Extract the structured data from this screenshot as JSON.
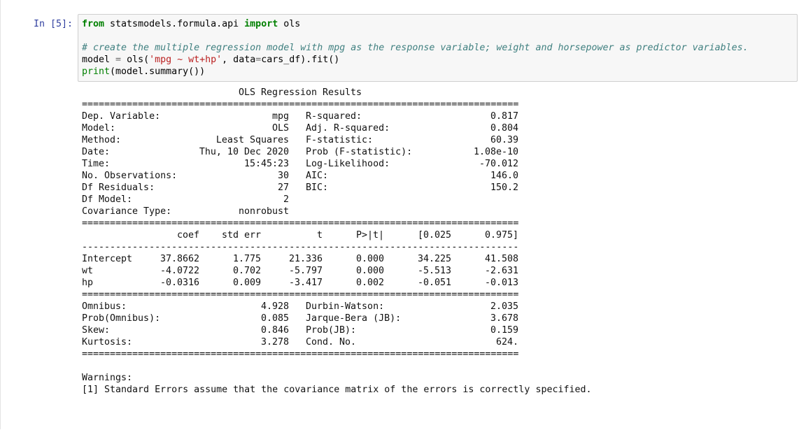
{
  "prompt": "In [5]:",
  "code": {
    "lines": [
      [
        "from",
        " statsmodels.formula.api ",
        "import",
        " ols"
      ],
      [
        "# create the multiple regression model with mpg as the response variable; weight and horsepower as predictor variables."
      ],
      [
        "model",
        " = ",
        "ols(",
        "'mpg ~ wt+hp'",
        ", data",
        "=",
        "cars_df).fit()"
      ],
      [
        "print",
        "(model.summary())"
      ]
    ]
  },
  "output": {
    "title": "OLS Regression Results",
    "rule_double": "==============================================================================",
    "rule_single": "------------------------------------------------------------------------------",
    "model_rows": [
      [
        "Dep. Variable:",
        "mpg",
        "R-squared:",
        "0.817"
      ],
      [
        "Model:",
        "OLS",
        "Adj. R-squared:",
        "0.804"
      ],
      [
        "Method:",
        "Least Squares",
        "F-statistic:",
        "60.39"
      ],
      [
        "Date:",
        "Thu, 10 Dec 2020",
        "Prob (F-statistic):",
        "1.08e-10"
      ],
      [
        "Time:",
        "15:45:23",
        "Log-Likelihood:",
        "-70.012"
      ],
      [
        "No. Observations:",
        "30",
        "AIC:",
        "146.0"
      ],
      [
        "Df Residuals:",
        "27",
        "BIC:",
        "150.2"
      ],
      [
        "Df Model:",
        "2"
      ],
      [
        "Covariance Type:",
        "nonrobust"
      ]
    ],
    "coef_header": [
      "coef",
      "std err",
      "t",
      "P>|t|",
      "[0.025",
      "0.975]"
    ],
    "coef_rows": [
      [
        "Intercept",
        "37.8662",
        "1.775",
        "21.336",
        "0.000",
        "34.225",
        "41.508"
      ],
      [
        "wt",
        "-4.0722",
        "0.702",
        "-5.797",
        "0.000",
        "-5.513",
        "-2.631"
      ],
      [
        "hp",
        "-0.0316",
        "0.009",
        "-3.417",
        "0.002",
        "-0.051",
        "-0.013"
      ]
    ],
    "diag_rows": [
      [
        "Omnibus:",
        "4.928",
        "Durbin-Watson:",
        "2.035"
      ],
      [
        "Prob(Omnibus):",
        "0.085",
        "Jarque-Bera (JB):",
        "3.678"
      ],
      [
        "Skew:",
        "0.846",
        "Prob(JB):",
        "0.159"
      ],
      [
        "Kurtosis:",
        "3.278",
        "Cond. No.",
        "624."
      ]
    ],
    "warnings_title": "Warnings:",
    "warnings": [
      "[1] Standard Errors assume that the covariance matrix of the errors is correctly specified."
    ]
  }
}
